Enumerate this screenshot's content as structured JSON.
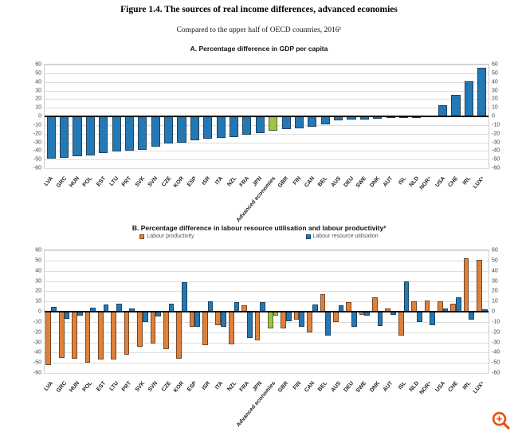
{
  "figure": {
    "title": "Figure 1.4. The sources of real income differences, advanced economies",
    "subtitle": "Compared to the upper half of OECD countries, 2016¹"
  },
  "colors": {
    "bar_blue": "#2478b4",
    "bar_orange": "#e0813a",
    "bar_green": "#9cc544",
    "zero_line": "#000000",
    "gridline": "#dddddd",
    "zoom_icon": "#e8510e"
  },
  "zoom_button": {
    "name": "zoom-image-button"
  },
  "chart_data": [
    {
      "type": "bar",
      "panel": "A",
      "title": "A. Percentage difference in GDP per capita",
      "categories": [
        "LVA",
        "GRC",
        "HUN",
        "POL",
        "EST",
        "LTU",
        "PRT",
        "SVK",
        "SVN",
        "CZE",
        "KOR",
        "ESP",
        "ISR",
        "ITA",
        "NZL",
        "FRA",
        "JPN",
        "Advanced economies",
        "GBR",
        "FIN",
        "CAN",
        "BEL",
        "AUS",
        "DEU",
        "SWE",
        "DNK",
        "AUT",
        "ISL",
        "NLD",
        "NOR⁴",
        "USA",
        "CHE",
        "IRL",
        "LUX⁵"
      ],
      "series": [
        {
          "name": "GDP per capita",
          "color": "#2478b4",
          "values": [
            -49,
            -48,
            -46,
            -45,
            -42,
            -41,
            -40,
            -39,
            -35,
            -31,
            -30,
            -28,
            -26,
            -25,
            -24,
            -21,
            -19,
            -17,
            -15,
            -14,
            -12,
            -9,
            -5,
            -4,
            -4,
            -3,
            -2,
            -1,
            -1,
            1,
            13,
            25,
            41,
            56
          ]
        }
      ],
      "highlight": {
        "category": "Advanced economies",
        "color": "#9cc544"
      },
      "ylim": [
        -60,
        60
      ],
      "ytick_step": 10,
      "grid": true,
      "show_legend": false,
      "axis_labels_both_sides": true,
      "xlabel": "",
      "ylabel": ""
    },
    {
      "type": "bar",
      "panel": "B",
      "title": "B. Percentage difference in labour resource utilisation and labour productivity²",
      "categories": [
        "LVA",
        "GRC",
        "HUN",
        "POL",
        "EST",
        "LTU",
        "PRT",
        "SVK",
        "SVN",
        "CZE",
        "KOR",
        "ESP",
        "ISR",
        "ITA",
        "NZL",
        "FRA",
        "JPN",
        "Advanced economies",
        "GBR",
        "FIN",
        "CAN",
        "BEL",
        "AUS",
        "DEU",
        "SWE",
        "DNK",
        "AUT",
        "ISL",
        "NLD",
        "NOR⁴",
        "USA",
        "CHE",
        "IRL",
        "LUX⁵"
      ],
      "series": [
        {
          "name": "Labour productivity",
          "color": "#e0813a",
          "values": [
            -52,
            -45,
            -46,
            -50,
            -47,
            -47,
            -42,
            -34,
            -31,
            -37,
            -46,
            -15,
            -33,
            -13,
            -32,
            6,
            -28,
            -16,
            -16,
            -8,
            -20,
            17,
            -10,
            9,
            -3,
            14,
            3,
            -23,
            10,
            11,
            10,
            8,
            52,
            51
          ]
        },
        {
          "name": "Labour resource utilisation",
          "color": "#2478b4",
          "values": [
            5,
            -7,
            -4,
            4,
            7,
            8,
            3,
            -10,
            -5,
            8,
            29,
            -15,
            10,
            -15,
            9,
            -26,
            9,
            -4,
            -9,
            -15,
            7,
            -23,
            6,
            -15,
            -4,
            -14,
            -3,
            30,
            -10,
            -13,
            3,
            14,
            -8,
            2
          ]
        }
      ],
      "highlight": {
        "category": "Advanced economies",
        "color": "#9cc544"
      },
      "ylim": [
        -60,
        60
      ],
      "ytick_step": 10,
      "grid": true,
      "show_legend": true,
      "axis_labels_both_sides": true,
      "xlabel": "",
      "ylabel": ""
    }
  ]
}
